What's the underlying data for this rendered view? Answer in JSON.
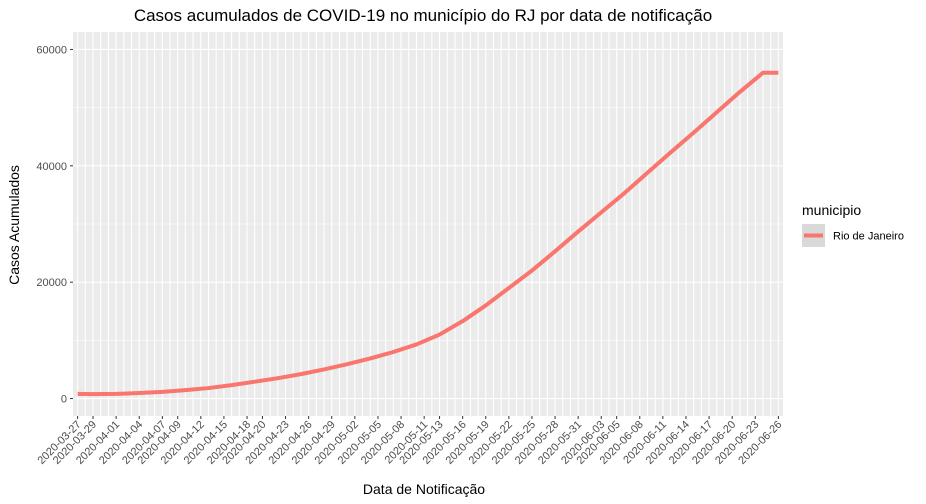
{
  "chart_data": {
    "type": "line",
    "title": "Casos acumulados de COVID-19 no município do RJ por data de notificação",
    "xlabel": "Data de Notificação",
    "ylabel": "Casos Acumulados",
    "ylim": [
      -3000,
      63000
    ],
    "yticks": [
      0,
      20000,
      40000,
      60000
    ],
    "ytick_labels": [
      "0",
      "20000",
      "40000",
      "60000"
    ],
    "x_start": "2020-03-27",
    "x_end": "2020-06-26",
    "xtick_labels": [
      "2020-03-27",
      "2020-03-29",
      "2020-04-01",
      "2020-04-04",
      "2020-04-07",
      "2020-04-09",
      "2020-04-12",
      "2020-04-15",
      "2020-04-18",
      "2020-04-20",
      "2020-04-23",
      "2020-04-26",
      "2020-04-29",
      "2020-05-02",
      "2020-05-05",
      "2020-05-08",
      "2020-05-11",
      "2020-05-13",
      "2020-05-16",
      "2020-05-19",
      "2020-05-22",
      "2020-05-25",
      "2020-05-28",
      "2020-05-31",
      "2020-06-03",
      "2020-06-05",
      "2020-06-08",
      "2020-06-11",
      "2020-06-14",
      "2020-06-17",
      "2020-06-20",
      "2020-06-23",
      "2020-06-26"
    ],
    "grid": true,
    "legend_position": "right",
    "legend_title": "municipio",
    "series": [
      {
        "name": "Rio de Janeiro",
        "color": "#F8766D",
        "x": [
          "2020-03-27",
          "2020-03-29",
          "2020-04-01",
          "2020-04-04",
          "2020-04-07",
          "2020-04-10",
          "2020-04-13",
          "2020-04-16",
          "2020-04-19",
          "2020-04-22",
          "2020-04-25",
          "2020-04-28",
          "2020-05-01",
          "2020-05-04",
          "2020-05-07",
          "2020-05-10",
          "2020-05-13",
          "2020-05-16",
          "2020-05-19",
          "2020-05-22",
          "2020-05-25",
          "2020-05-28",
          "2020-05-31",
          "2020-06-03",
          "2020-06-06",
          "2020-06-09",
          "2020-06-12",
          "2020-06-15",
          "2020-06-18",
          "2020-06-21",
          "2020-06-24",
          "2020-06-26"
        ],
        "y": [
          800,
          750,
          800,
          950,
          1150,
          1450,
          1800,
          2300,
          2900,
          3500,
          4200,
          5000,
          5900,
          6900,
          8000,
          9300,
          11000,
          13300,
          16000,
          19000,
          22000,
          25300,
          28700,
          32000,
          35300,
          38800,
          42300,
          45700,
          49200,
          52700,
          56000,
          56000
        ]
      }
    ]
  }
}
